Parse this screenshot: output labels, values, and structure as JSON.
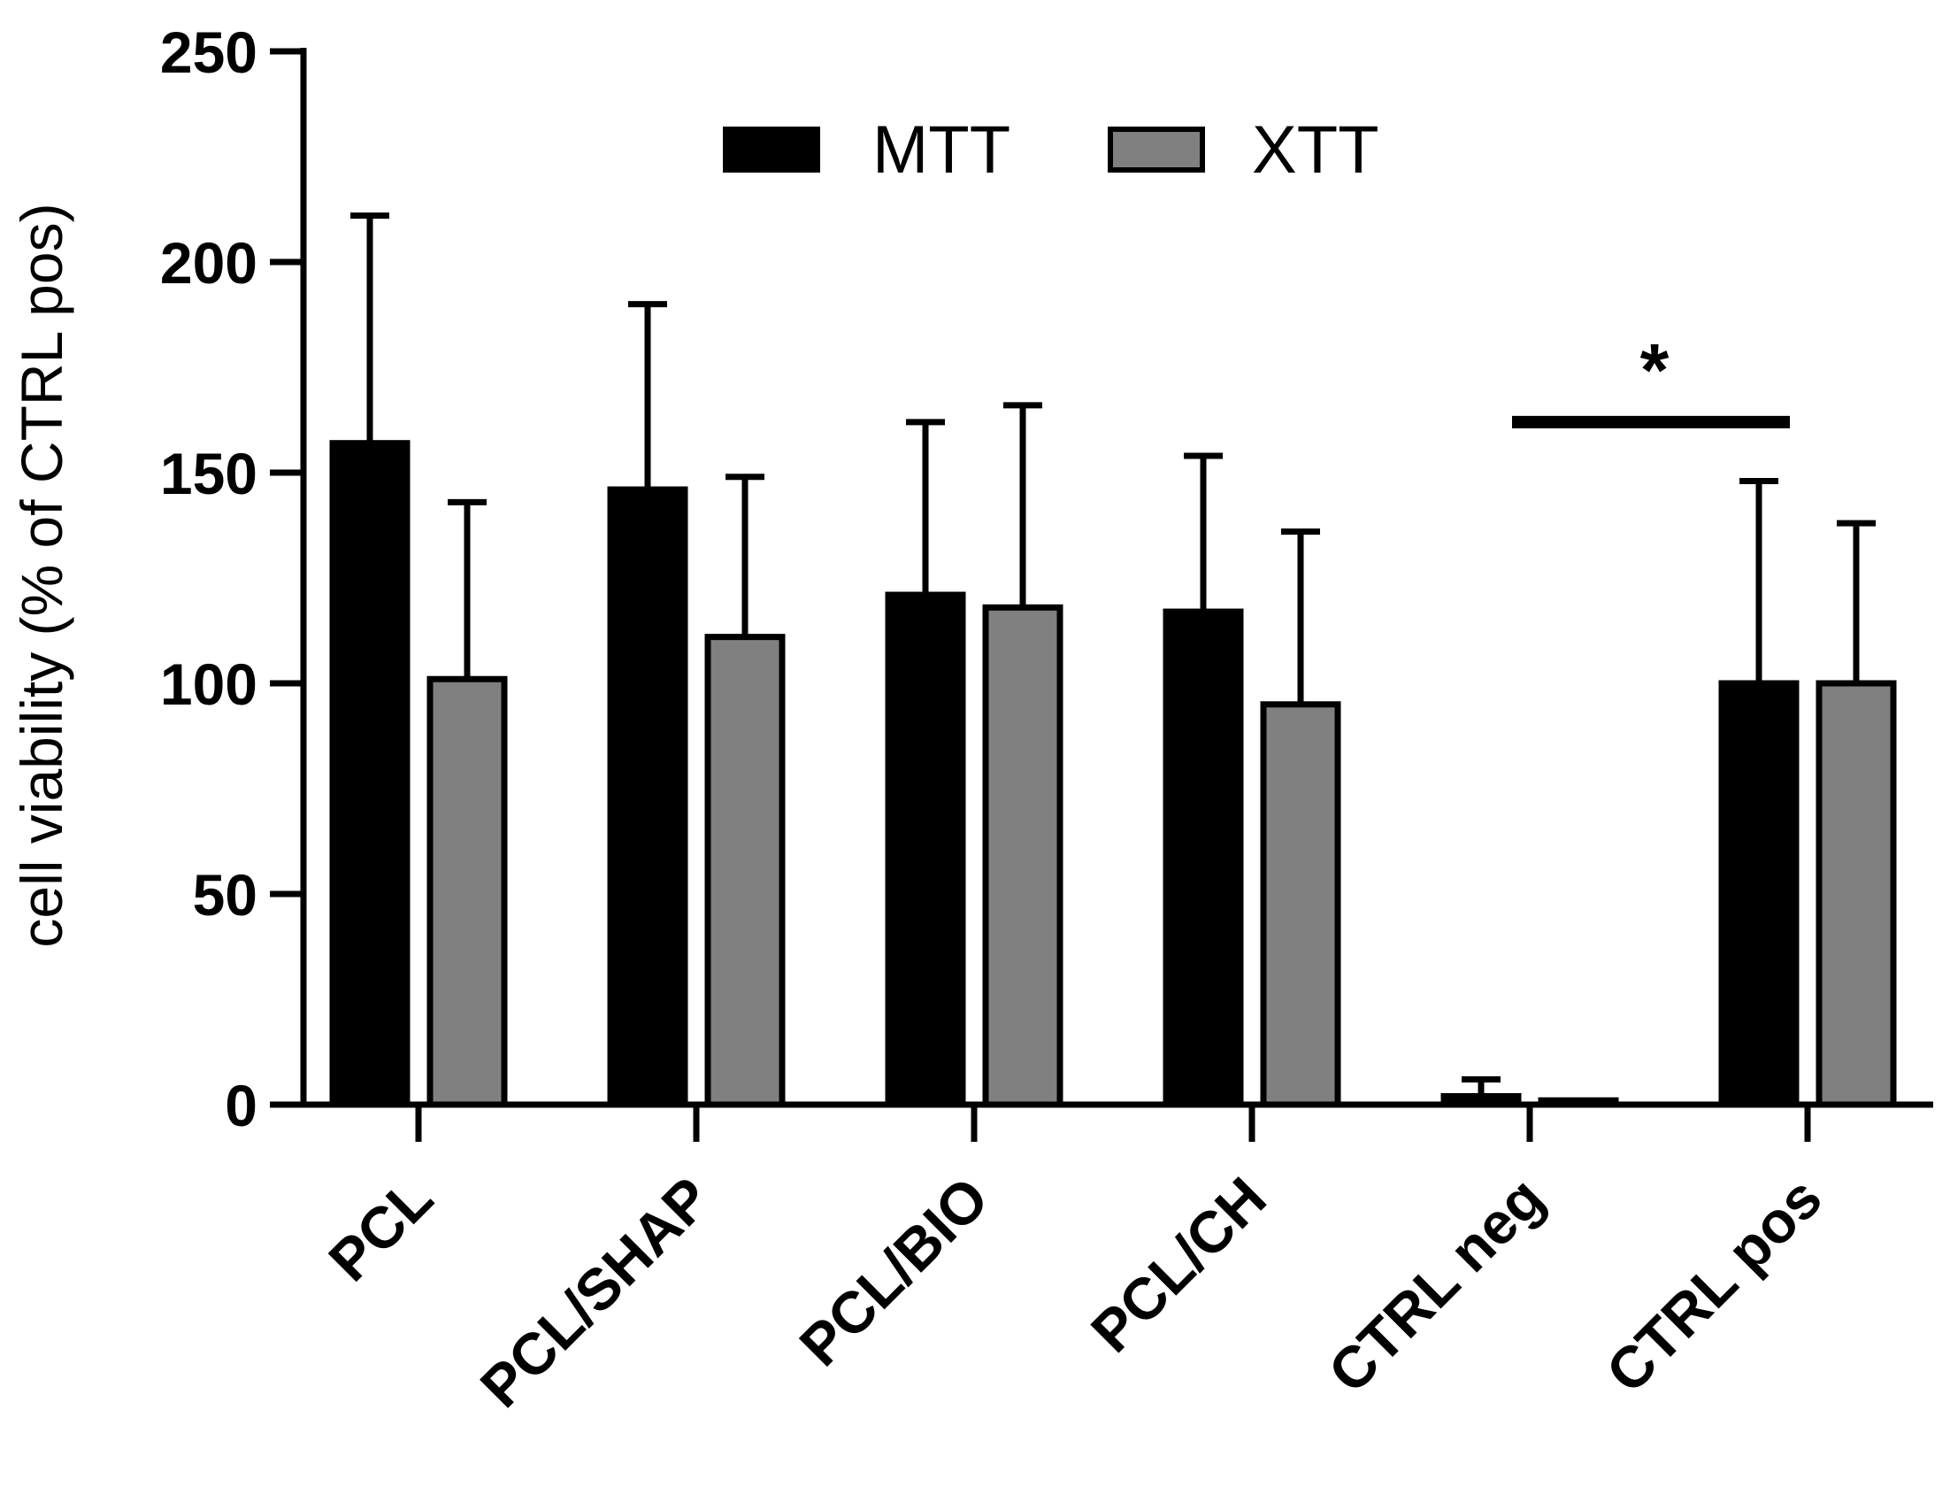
{
  "chart_data": {
    "type": "bar",
    "title": "",
    "xlabel": "",
    "ylabel": "cell viability (% of CTRL pos)",
    "ylim": [
      0,
      250
    ],
    "yticks": [
      0,
      50,
      100,
      150,
      200,
      250
    ],
    "grid": false,
    "legend_position": "top",
    "categories": [
      "PCL",
      "PCL/SHAP",
      "PCL/BIO",
      "PCL/CH",
      "CTRL neg",
      "CTRL pos"
    ],
    "series": [
      {
        "name": "MTT",
        "color": "#000000",
        "values": [
          157,
          146,
          121,
          117,
          2,
          100
        ],
        "errors": [
          54,
          44,
          41,
          37,
          4,
          48
        ]
      },
      {
        "name": "XTT",
        "color": "#808080",
        "values": [
          101,
          111,
          118,
          95,
          1,
          100
        ],
        "errors": [
          42,
          38,
          48,
          41,
          0,
          38
        ]
      }
    ],
    "annotations": [
      {
        "text": "*",
        "from_category": "CTRL neg",
        "to_category": "CTRL pos",
        "y": 162
      }
    ]
  }
}
